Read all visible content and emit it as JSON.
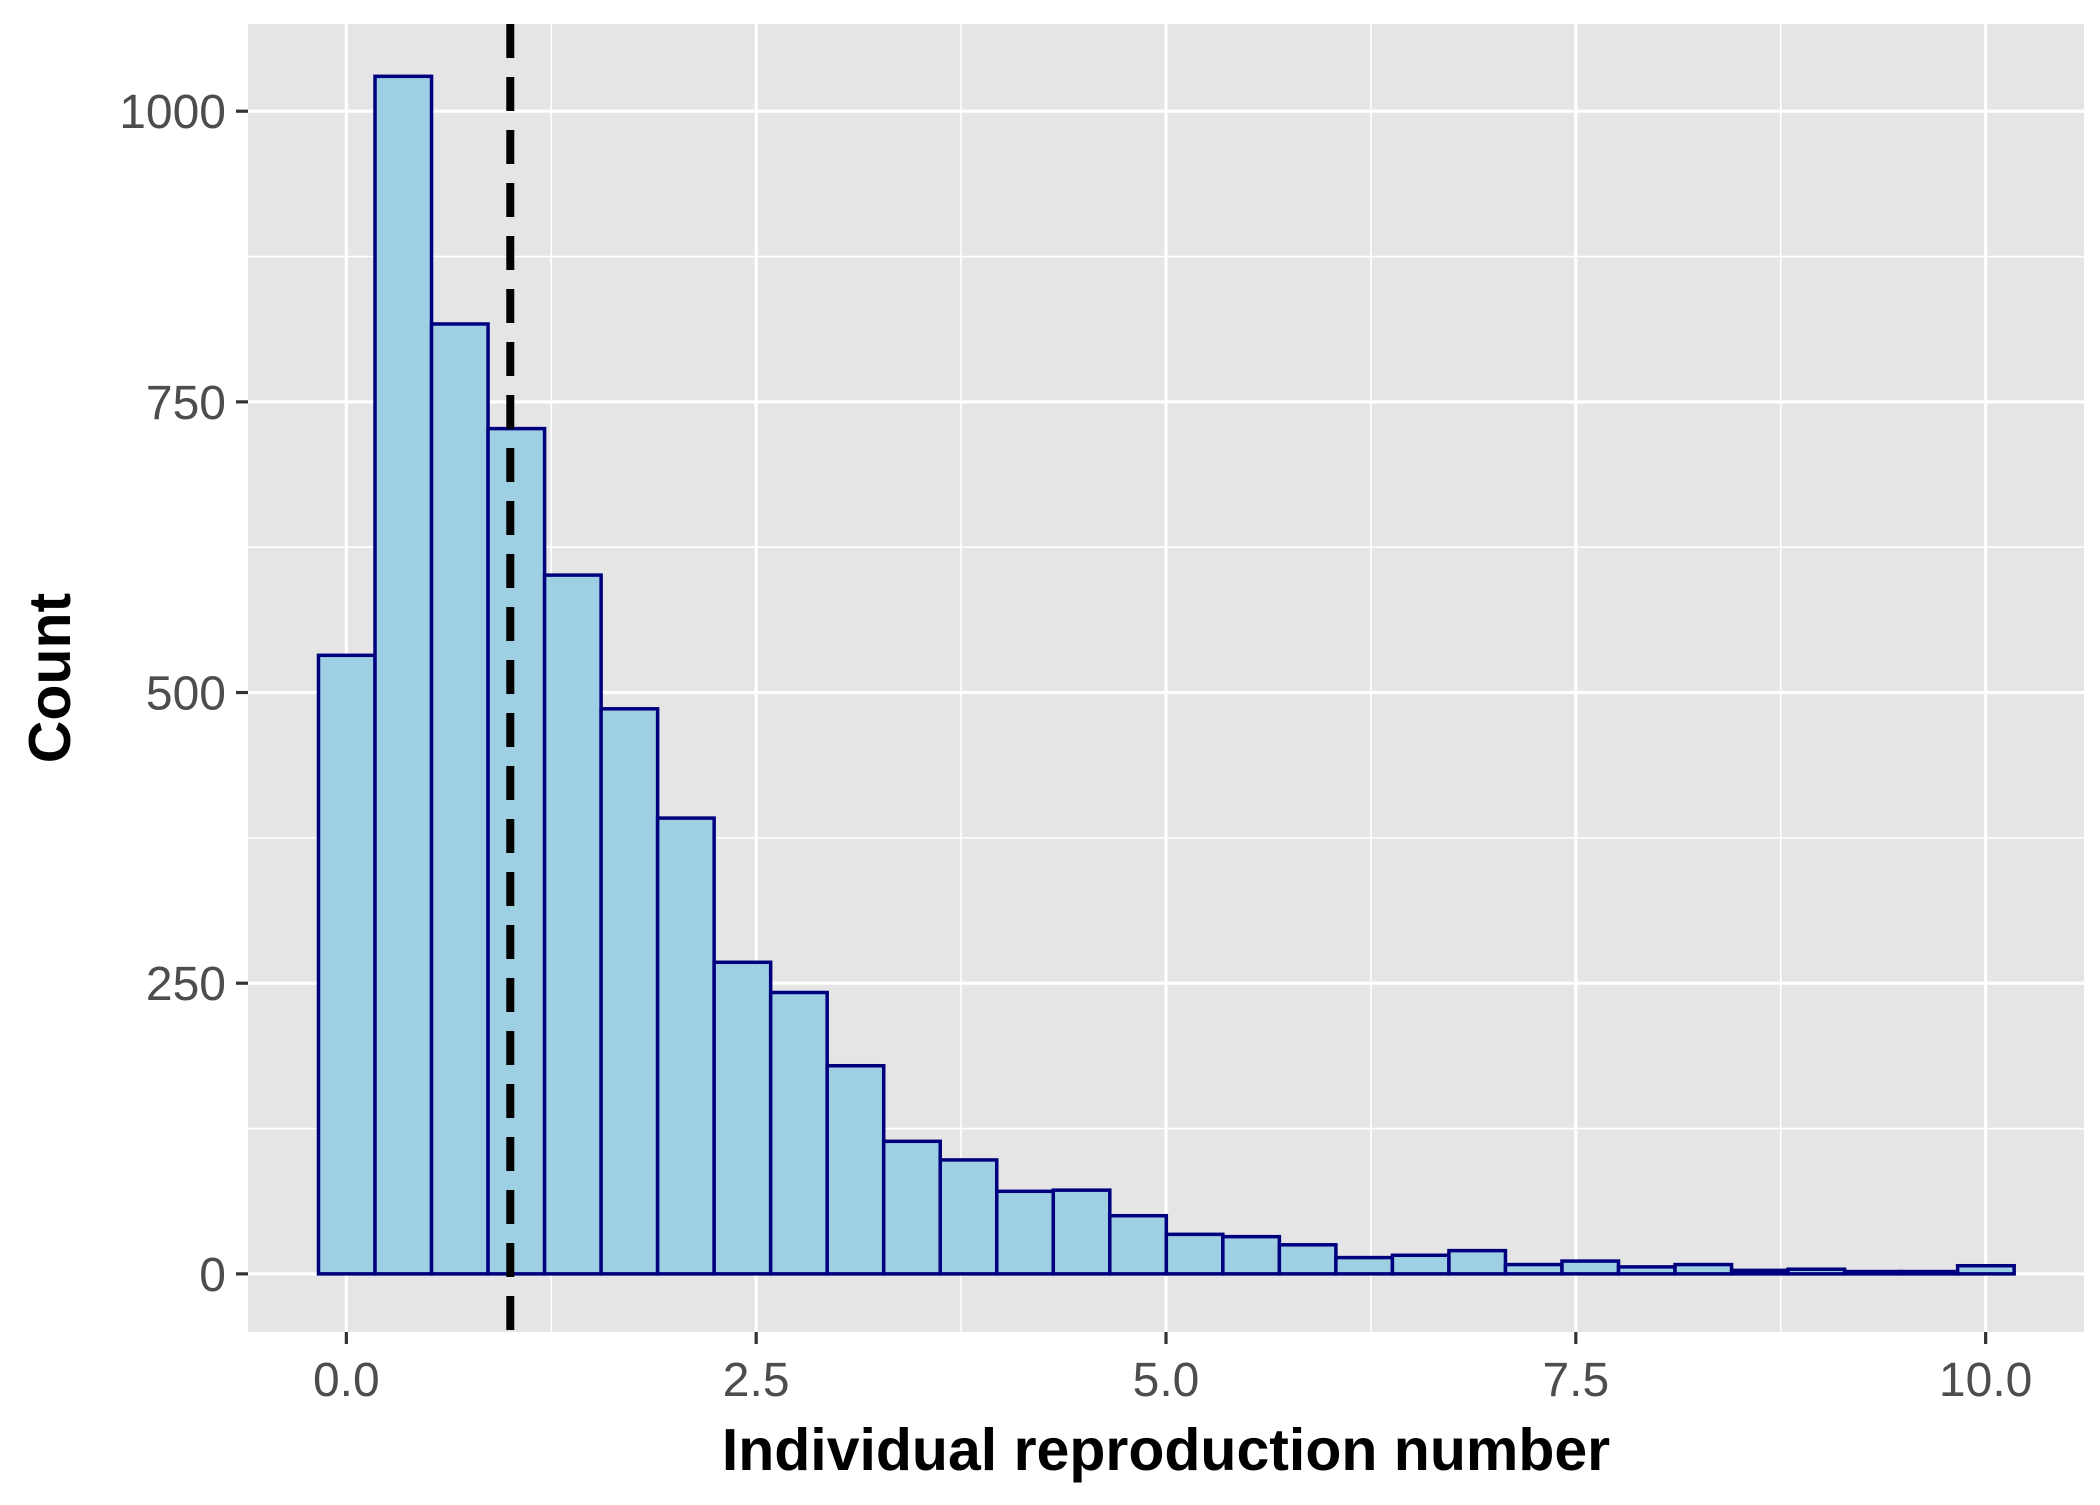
{
  "chart_data": {
    "type": "bar",
    "subtype": "histogram",
    "title": "",
    "xlabel": "Individual reproduction number",
    "ylabel": "Count",
    "xlim": [
      -0.6,
      10.6
    ],
    "ylim": [
      -50,
      1075
    ],
    "x_ticks": [
      0.0,
      2.5,
      5.0,
      7.5,
      10.0
    ],
    "x_tick_labels": [
      "0.0",
      "2.5",
      "5.0",
      "7.5",
      "10.0"
    ],
    "y_ticks": [
      0,
      250,
      500,
      750,
      1000
    ],
    "y_tick_labels": [
      "0",
      "250",
      "500",
      "750",
      "1000"
    ],
    "grid": true,
    "legend": "none",
    "bin_start": -0.17,
    "bin_width": 0.3448,
    "counts": [
      532,
      1030,
      817,
      727,
      601,
      486,
      392,
      268,
      242,
      179,
      114,
      98,
      71,
      72,
      50,
      34,
      32,
      25,
      14,
      16,
      20,
      8,
      11,
      6,
      8,
      3,
      4,
      2,
      2,
      7
    ],
    "reference_line": {
      "x": 1.0,
      "style": "dashed",
      "color": "#000000"
    },
    "colors": {
      "bar_fill": "#9ecfe2",
      "bar_stroke": "#00007f",
      "panel_background": "#e5e5e5",
      "grid": "#ffffff"
    }
  }
}
